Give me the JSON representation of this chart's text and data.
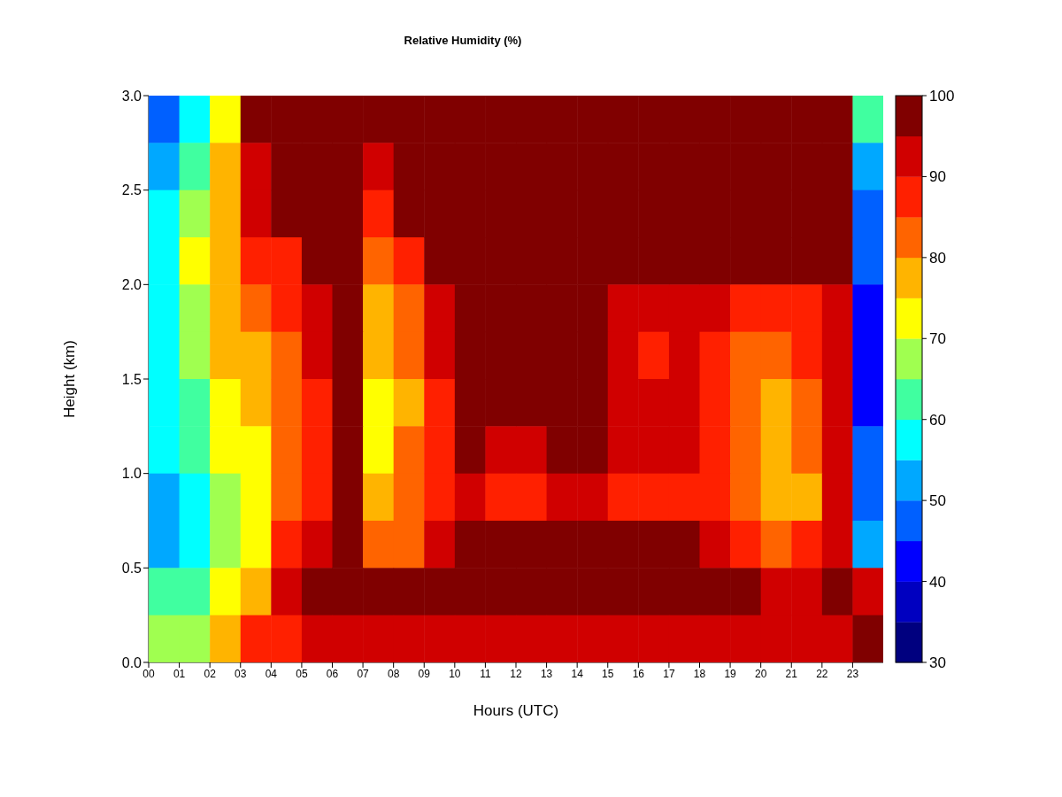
{
  "chart_data": {
    "type": "heatmap",
    "title": "Relative Humidity (%)",
    "xlabel": "Hours (UTC)",
    "ylabel": "Height (km)",
    "x": [
      0.5,
      1.5,
      2.5,
      3.5,
      4.5,
      5.5,
      6.5,
      7.5,
      8.5,
      9.5,
      10.5,
      11.5,
      12.5,
      13.5,
      14.5,
      15.5,
      16.5,
      17.5,
      18.5,
      19.5,
      20.5,
      21.5,
      22.5,
      23.5
    ],
    "xlim": [
      0,
      24
    ],
    "xticks": [
      {
        "value": 0,
        "label": "00"
      },
      {
        "value": 1,
        "label": "01"
      },
      {
        "value": 2,
        "label": "02"
      },
      {
        "value": 3,
        "label": "03"
      },
      {
        "value": 4,
        "label": "04"
      },
      {
        "value": 5,
        "label": "05"
      },
      {
        "value": 6,
        "label": "06"
      },
      {
        "value": 7,
        "label": "07"
      },
      {
        "value": 8,
        "label": "08"
      },
      {
        "value": 9,
        "label": "09"
      },
      {
        "value": 10,
        "label": "10"
      },
      {
        "value": 11,
        "label": "11"
      },
      {
        "value": 12,
        "label": "12"
      },
      {
        "value": 13,
        "label": "13"
      },
      {
        "value": 14,
        "label": "14"
      },
      {
        "value": 15,
        "label": "15"
      },
      {
        "value": 16,
        "label": "16"
      },
      {
        "value": 17,
        "label": "17"
      },
      {
        "value": 18,
        "label": "18"
      },
      {
        "value": 19,
        "label": "19"
      },
      {
        "value": 20,
        "label": "20"
      },
      {
        "value": 21,
        "label": "21"
      },
      {
        "value": 22,
        "label": "22"
      },
      {
        "value": 23,
        "label": "23"
      }
    ],
    "ylim": [
      0,
      3
    ],
    "yticks": [
      {
        "value": 0,
        "label": "0.0"
      },
      {
        "value": 0.5,
        "label": "0.5"
      },
      {
        "value": 1,
        "label": "1.0"
      },
      {
        "value": 1.5,
        "label": "1.5"
      },
      {
        "value": 2,
        "label": "2.0"
      },
      {
        "value": 2.5,
        "label": "2.5"
      },
      {
        "value": 3,
        "label": "3.0"
      }
    ],
    "cells": [
      [
        45,
        55,
        70,
        97,
        97,
        97,
        97,
        97,
        97,
        97,
        97,
        97,
        97,
        97,
        97,
        97,
        97,
        97,
        97,
        97,
        97,
        97,
        97,
        60
      ],
      [
        50,
        62,
        75,
        92,
        97,
        97,
        97,
        92,
        97,
        97,
        97,
        97,
        97,
        97,
        97,
        97,
        97,
        97,
        97,
        97,
        97,
        97,
        97,
        50
      ],
      [
        55,
        67,
        77,
        92,
        97,
        97,
        97,
        88,
        97,
        97,
        97,
        97,
        97,
        97,
        97,
        97,
        97,
        97,
        97,
        97,
        97,
        97,
        97,
        45
      ],
      [
        58,
        70,
        75,
        88,
        88,
        97,
        97,
        82,
        88,
        97,
        97,
        97,
        97,
        97,
        97,
        97,
        97,
        97,
        97,
        97,
        97,
        97,
        97,
        45
      ],
      [
        58,
        68,
        75,
        82,
        85,
        92,
        97,
        78,
        82,
        92,
        97,
        97,
        97,
        97,
        97,
        92,
        90,
        92,
        90,
        88,
        85,
        88,
        92,
        40
      ],
      [
        57,
        65,
        75,
        78,
        80,
        90,
        97,
        75,
        80,
        90,
        97,
        97,
        97,
        97,
        97,
        90,
        88,
        90,
        85,
        82,
        80,
        85,
        90,
        40
      ],
      [
        57,
        62,
        72,
        75,
        80,
        88,
        97,
        72,
        78,
        88,
        97,
        97,
        97,
        97,
        97,
        92,
        90,
        92,
        88,
        82,
        78,
        82,
        90,
        42
      ],
      [
        57,
        60,
        70,
        72,
        80,
        88,
        97,
        72,
        80,
        88,
        97,
        92,
        92,
        97,
        97,
        92,
        90,
        92,
        88,
        82,
        78,
        82,
        90,
        45
      ],
      [
        52,
        58,
        68,
        72,
        82,
        88,
        97,
        75,
        80,
        88,
        92,
        88,
        88,
        92,
        92,
        88,
        88,
        88,
        85,
        80,
        75,
        78,
        90,
        45
      ],
      [
        50,
        57,
        65,
        70,
        85,
        92,
        97,
        82,
        82,
        90,
        97,
        97,
        97,
        97,
        97,
        97,
        97,
        97,
        92,
        88,
        82,
        85,
        92,
        50
      ],
      [
        60,
        62,
        70,
        75,
        92,
        97,
        97,
        97,
        97,
        97,
        97,
        97,
        97,
        97,
        97,
        97,
        97,
        97,
        97,
        97,
        92,
        92,
        97,
        92
      ],
      [
        65,
        68,
        78,
        85,
        88,
        90,
        92,
        92,
        90,
        90,
        92,
        92,
        92,
        92,
        92,
        92,
        90,
        92,
        92,
        92,
        92,
        92,
        92,
        97
      ]
    ],
    "clim": [
      30,
      100
    ],
    "cticks": [
      30,
      40,
      50,
      60,
      70,
      80,
      90,
      100
    ],
    "colors": [
      "#00007f",
      "#0000c0",
      "#0000ff",
      "#0060ff",
      "#00a8ff",
      "#00ffff",
      "#40ffa0",
      "#a0ff50",
      "#ffff00",
      "#ffb400",
      "#ff6400",
      "#ff2000",
      "#d00000",
      "#800000"
    ]
  }
}
